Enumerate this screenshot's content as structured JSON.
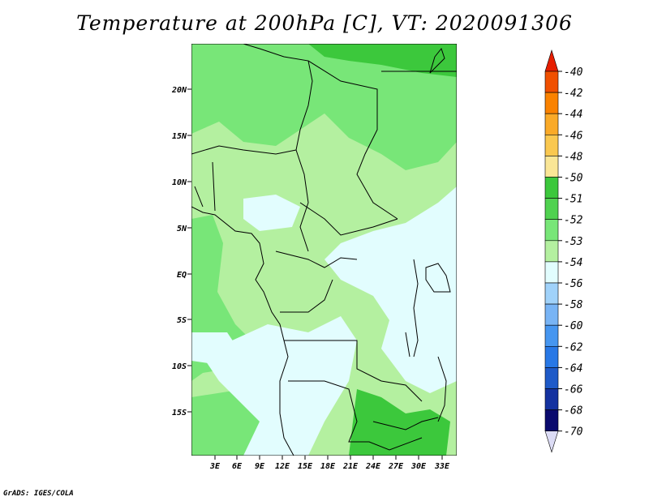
{
  "title": "Temperature at 200hPa [C], VT: 2020091306",
  "credit": "GrADS: IGES/COLA",
  "map": {
    "lat_labels": [
      "20N",
      "15N",
      "10N",
      "5N",
      "EQ",
      "5S",
      "10S",
      "15S"
    ],
    "lon_labels": [
      "3E",
      "6E",
      "9E",
      "12E",
      "15E",
      "18E",
      "21E",
      "24E",
      "27E",
      "30E",
      "33E"
    ],
    "fill_colors": {
      "level_minus52": "#3cc83c",
      "level_minus53": "#78e678",
      "level_minus54": "#b4f0a0",
      "level_minus56": "#e2fdfe"
    }
  },
  "colorbar": {
    "labels": [
      "-40",
      "-42",
      "-44",
      "-46",
      "-48",
      "-50",
      "-51",
      "-52",
      "-53",
      "-54",
      "-56",
      "-58",
      "-60",
      "-62",
      "-64",
      "-66",
      "-68",
      "-70"
    ],
    "colors": [
      "#e61e00",
      "#f05000",
      "#fa8200",
      "#faaa28",
      "#fac850",
      "#fae696",
      "#3cc83c",
      "#50d250",
      "#78e678",
      "#b4f0a0",
      "#e2fdfe",
      "#a0d2fa",
      "#78b4f5",
      "#4696f0",
      "#2878e6",
      "#1e5ac8",
      "#1432a0",
      "#0a0a6e",
      "#dcdcf5"
    ]
  }
}
